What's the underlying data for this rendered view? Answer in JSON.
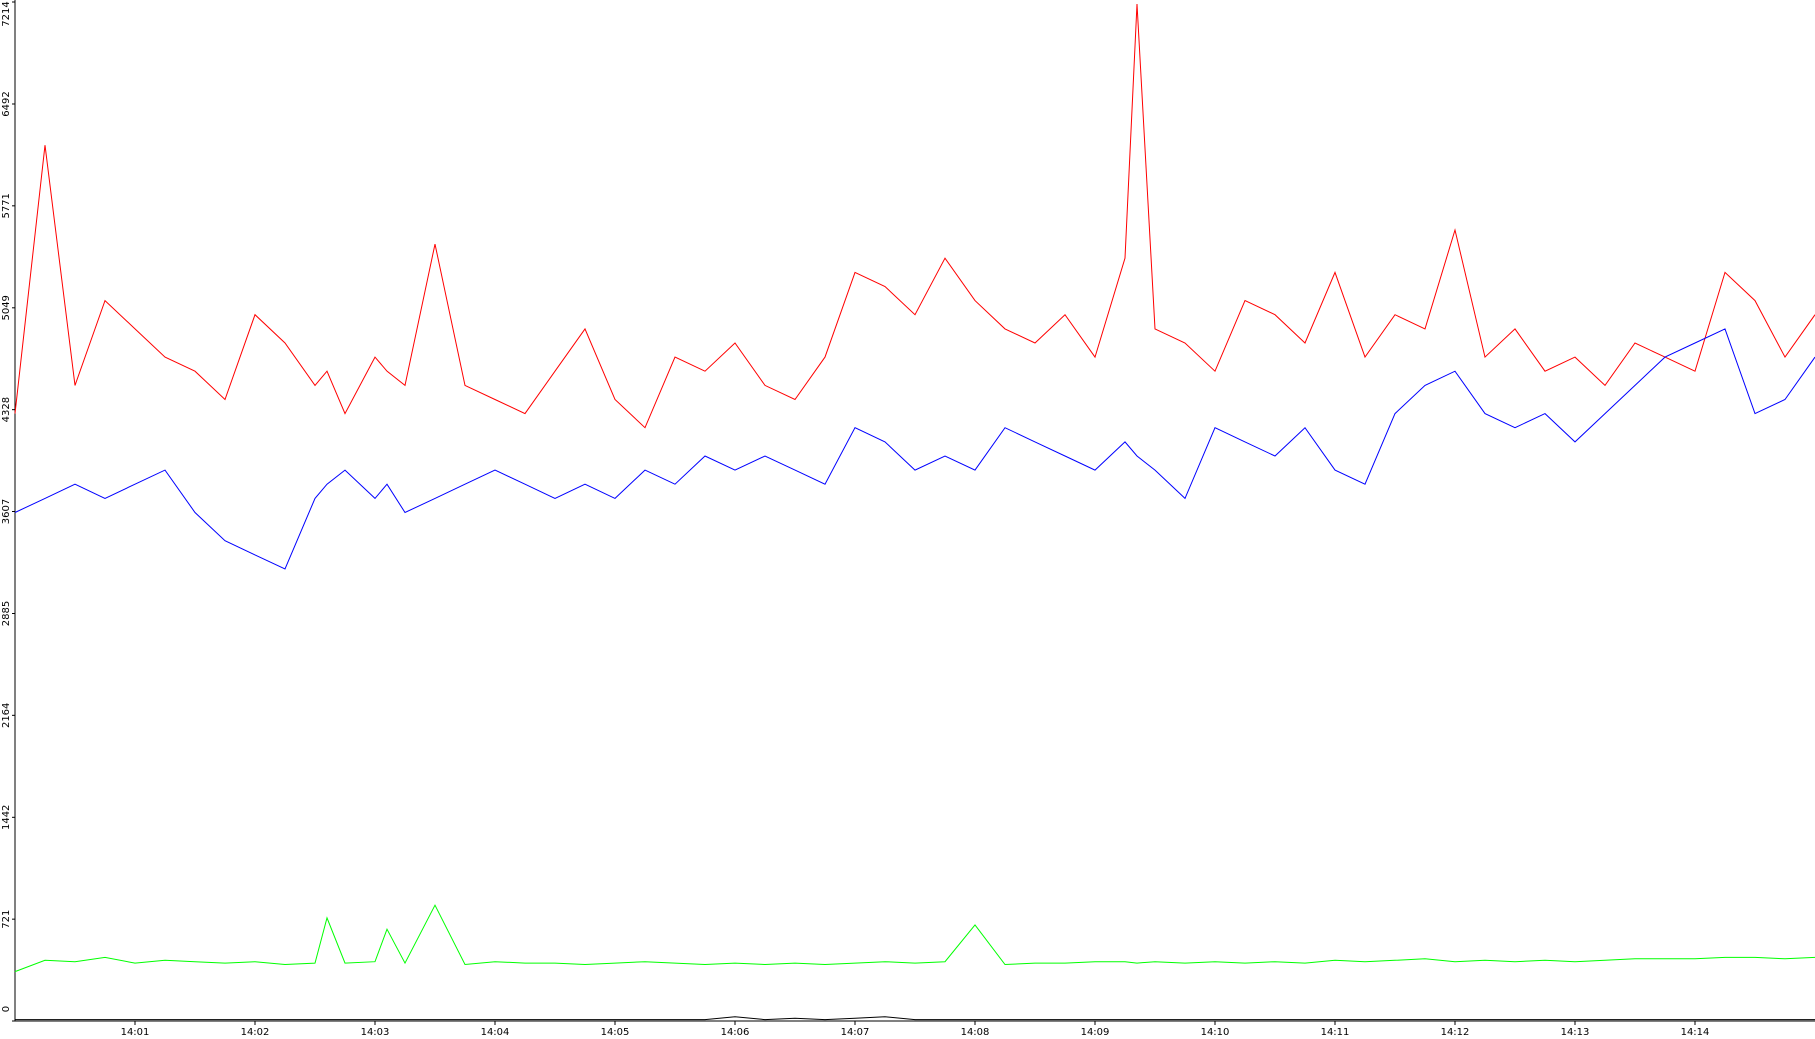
{
  "chart_data": {
    "type": "line",
    "x": [
      0,
      0.25,
      0.5,
      0.75,
      1,
      1.25,
      1.5,
      1.75,
      2,
      2.25,
      2.5,
      2.6,
      2.75,
      3,
      3.1,
      3.25,
      3.5,
      3.75,
      4,
      4.25,
      4.5,
      4.75,
      5,
      5.25,
      5.5,
      5.75,
      6,
      6.25,
      6.5,
      6.75,
      7,
      7.25,
      7.5,
      7.75,
      8,
      8.25,
      8.5,
      8.75,
      9,
      9.25,
      9.35,
      9.5,
      9.75,
      10,
      10.25,
      10.5,
      10.75,
      11,
      11.25,
      11.5,
      11.75,
      12,
      12.25,
      12.5,
      12.75,
      13,
      13.25,
      13.5,
      13.75,
      14,
      14.25,
      14.5,
      14.75,
      15
    ],
    "series": [
      {
        "color": "#ff0000",
        "values": [
          4300,
          6200,
          4500,
          5100,
          4900,
          4700,
          4600,
          4400,
          5000,
          4800,
          4500,
          4600,
          4300,
          4700,
          4600,
          4500,
          5500,
          4500,
          4400,
          4300,
          4600,
          4900,
          4400,
          4200,
          4700,
          4600,
          4800,
          4500,
          4400,
          4700,
          5300,
          5200,
          5000,
          5400,
          5100,
          4900,
          4800,
          5000,
          4700,
          5400,
          7200,
          4900,
          4800,
          4600,
          5100,
          5000,
          4800,
          5300,
          4700,
          5000,
          4900,
          5600,
          4700,
          4900,
          4600,
          4700,
          4500,
          4800,
          4700,
          4600,
          5300,
          5100,
          4700,
          5000
        ]
      },
      {
        "color": "#0000ff",
        "values": [
          3600,
          3700,
          3800,
          3700,
          3800,
          3900,
          3600,
          3400,
          3300,
          3200,
          3700,
          3800,
          3900,
          3700,
          3800,
          3600,
          3700,
          3800,
          3900,
          3800,
          3700,
          3800,
          3700,
          3900,
          3800,
          4000,
          3900,
          4000,
          3900,
          3800,
          4200,
          4100,
          3900,
          4000,
          3900,
          4200,
          4100,
          4000,
          3900,
          4100,
          4000,
          3900,
          3700,
          4200,
          4100,
          4000,
          4200,
          3900,
          3800,
          4300,
          4500,
          4600,
          4300,
          4200,
          4300,
          4100,
          4300,
          4500,
          4700,
          4800,
          4900,
          4300,
          4400,
          4700
        ]
      },
      {
        "color": "#00ff00",
        "values": [
          350,
          430,
          420,
          450,
          410,
          430,
          420,
          410,
          420,
          400,
          410,
          730,
          410,
          420,
          650,
          410,
          820,
          400,
          420,
          410,
          410,
          400,
          410,
          420,
          410,
          400,
          410,
          400,
          410,
          400,
          410,
          420,
          410,
          420,
          680,
          400,
          410,
          410,
          420,
          420,
          410,
          420,
          410,
          420,
          410,
          420,
          410,
          430,
          420,
          430,
          440,
          420,
          430,
          420,
          430,
          420,
          430,
          440,
          440,
          440,
          450,
          450,
          440,
          450
        ]
      },
      {
        "color": "#000000",
        "values": [
          10,
          10,
          10,
          10,
          10,
          10,
          10,
          10,
          10,
          10,
          10,
          10,
          10,
          10,
          10,
          10,
          10,
          10,
          10,
          10,
          10,
          10,
          10,
          10,
          10,
          10,
          30,
          10,
          20,
          10,
          20,
          30,
          10,
          10,
          10,
          10,
          10,
          10,
          10,
          10,
          10,
          10,
          10,
          10,
          10,
          10,
          10,
          10,
          10,
          10,
          10,
          10,
          10,
          10,
          10,
          10,
          10,
          10,
          10,
          10,
          10,
          10,
          10,
          10
        ]
      }
    ],
    "xlim": [
      0,
      15
    ],
    "xticks": [
      {
        "value": 1,
        "label": "14:01"
      },
      {
        "value": 2,
        "label": "14:02"
      },
      {
        "value": 3,
        "label": "14:03"
      },
      {
        "value": 4,
        "label": "14:04"
      },
      {
        "value": 5,
        "label": "14:05"
      },
      {
        "value": 6,
        "label": "14:06"
      },
      {
        "value": 7,
        "label": "14:07"
      },
      {
        "value": 8,
        "label": "14:08"
      },
      {
        "value": 9,
        "label": "14:09"
      },
      {
        "value": 10,
        "label": "14:10"
      },
      {
        "value": 11,
        "label": "14:11"
      },
      {
        "value": 12,
        "label": "14:12"
      },
      {
        "value": 13,
        "label": "14:13"
      },
      {
        "value": 14,
        "label": "14:14"
      }
    ],
    "ylim": [
      0,
      7214
    ],
    "yticks": [
      0,
      721,
      1442,
      2164,
      2885,
      3607,
      4328,
      5049,
      5771,
      6492,
      7214
    ]
  }
}
